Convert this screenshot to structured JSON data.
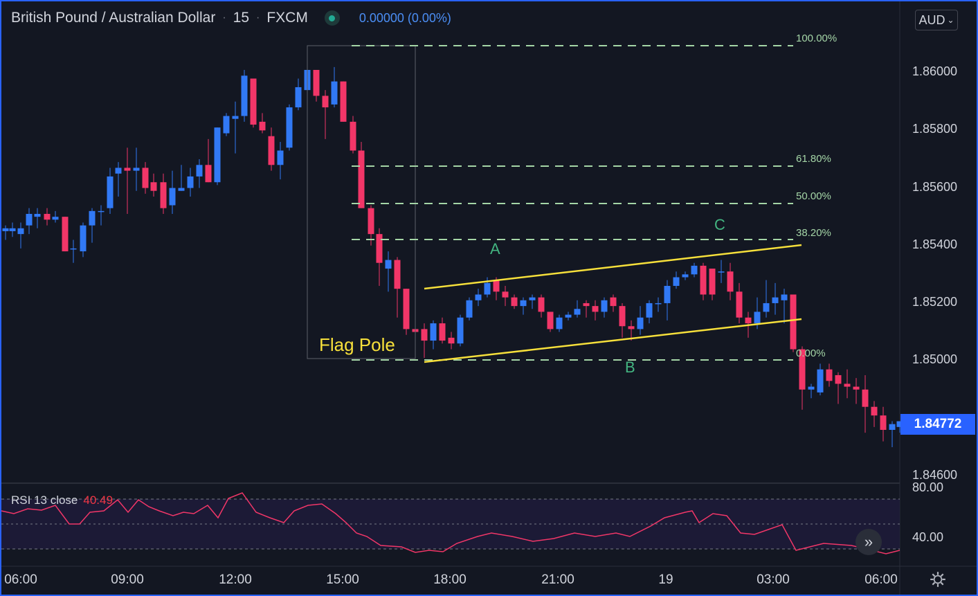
{
  "header": {
    "symbol": "British Pound / Australian Dollar",
    "interval": "15",
    "exchange": "FXCM",
    "change": "0.00000 (0.00%)",
    "status_icon": "market-status-icon"
  },
  "currency_button": "AUD",
  "current_price": "1.84772",
  "price_axis": [
    "1.86000",
    "1.85800",
    "1.85600",
    "1.85400",
    "1.85200",
    "1.85000",
    "1.84600"
  ],
  "time_axis": [
    "06:00",
    "09:00",
    "12:00",
    "15:00",
    "18:00",
    "21:00",
    "19",
    "03:00",
    "06:00"
  ],
  "annotations": {
    "flag_pole": "Flag Pole",
    "point_a": "A",
    "point_b": "B",
    "point_c": "C"
  },
  "fib_levels": [
    "100.00%",
    "61.80%",
    "50.00%",
    "38.20%",
    "0.00%"
  ],
  "rsi": {
    "label": "RSI 13 close",
    "value": "40.49",
    "axis": [
      "80.00",
      "40.00"
    ]
  },
  "colors": {
    "background": "#131722",
    "up_candle": "#3179f5",
    "down_candle": "#f23668",
    "fib_line": "#a5d6a7",
    "flag_line": "#f7e03b",
    "rsi_line": "#f23668",
    "accent": "#2962ff"
  },
  "icons": {
    "scroll": "fast-forward-icon",
    "settings": "settings-gear-icon"
  }
}
